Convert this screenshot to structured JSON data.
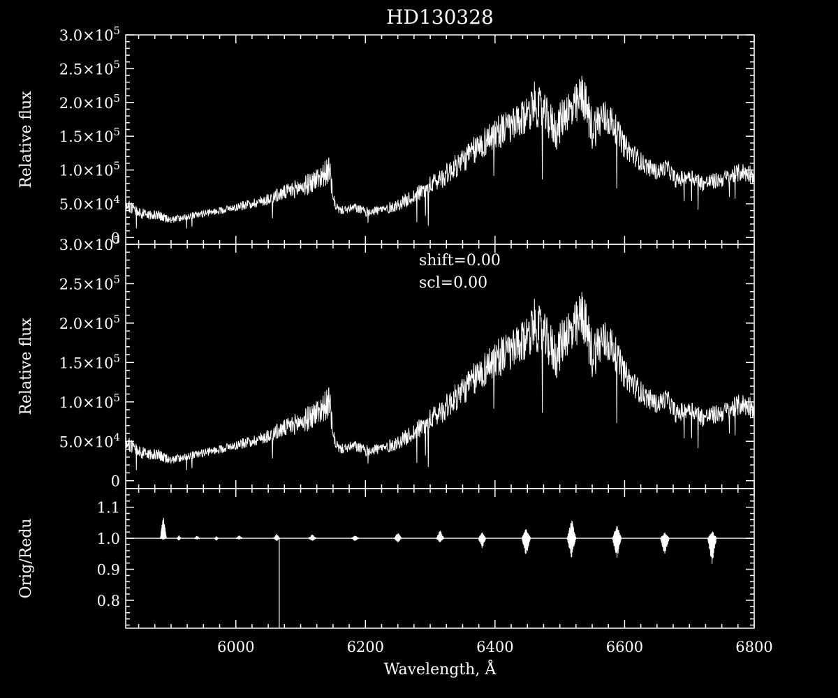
{
  "chart_data": [
    {
      "type": "line",
      "title": "HD130328",
      "xlabel": "",
      "ylabel": "Relative flux",
      "xlim": [
        5830,
        6800
      ],
      "ylim": [
        -10000,
        300000
      ],
      "yticks": [
        {
          "value": 300000,
          "mant": "3.0",
          "exp": "5"
        },
        {
          "value": 250000,
          "mant": "2.5",
          "exp": "5"
        },
        {
          "value": 200000,
          "mant": "2.0",
          "exp": "5"
        },
        {
          "value": 150000,
          "mant": "1.5",
          "exp": "5"
        },
        {
          "value": 100000,
          "mant": "1.0",
          "exp": "5"
        },
        {
          "value": 50000,
          "mant": "5.0",
          "exp": "4"
        },
        {
          "value": 0,
          "mant": "0",
          "exp": ""
        }
      ],
      "annotations": [],
      "series": [
        {
          "x": [
            5830,
            5850,
            5880,
            5900,
            5930,
            5960,
            6000,
            6040,
            6080,
            6110,
            6130,
            6145,
            6150,
            6160,
            6185,
            6200,
            6230,
            6250,
            6280,
            6320,
            6360,
            6400,
            6440,
            6460,
            6480,
            6495,
            6510,
            6520,
            6535,
            6550,
            6565,
            6580,
            6600,
            6630,
            6650,
            6665,
            6680,
            6700,
            6720,
            6750,
            6780,
            6800
          ],
          "y": [
            50000,
            36000,
            32000,
            26000,
            32000,
            37000,
            45000,
            54000,
            68000,
            78000,
            90000,
            100000,
            55000,
            40000,
            44000,
            38000,
            42000,
            48000,
            64000,
            90000,
            122000,
            155000,
            170000,
            200000,
            178000,
            158000,
            190000,
            185000,
            213000,
            160000,
            178000,
            172000,
            135000,
            108000,
            97000,
            105000,
            84000,
            93000,
            80000,
            86000,
            97000,
            94000
          ],
          "noise": [
            9000,
            8000,
            8000,
            5000,
            5000,
            5000,
            6000,
            8000,
            12000,
            16000,
            18000,
            20000,
            10000,
            6000,
            7000,
            7000,
            8000,
            9000,
            12000,
            16000,
            20000,
            25000,
            28000,
            32000,
            30000,
            30000,
            32000,
            34000,
            34000,
            32000,
            30000,
            24000,
            18000,
            14000,
            12000,
            12000,
            12000,
            12000,
            12000,
            12000,
            14000,
            14000
          ]
        }
      ]
    },
    {
      "type": "line",
      "title": "",
      "xlabel": "",
      "ylabel": "Relative flux",
      "xlim": [
        5830,
        6800
      ],
      "ylim": [
        -10000,
        300000
      ],
      "yticks": [
        {
          "value": 300000,
          "mant": "3.0",
          "exp": "5"
        },
        {
          "value": 250000,
          "mant": "2.5",
          "exp": "5"
        },
        {
          "value": 200000,
          "mant": "2.0",
          "exp": "5"
        },
        {
          "value": 150000,
          "mant": "1.5",
          "exp": "5"
        },
        {
          "value": 100000,
          "mant": "1.0",
          "exp": "5"
        },
        {
          "value": 50000,
          "mant": "5.0",
          "exp": "4"
        },
        {
          "value": 0,
          "mant": "0",
          "exp": ""
        }
      ],
      "annotations": [
        "shift=0.00",
        "scl=0.00"
      ],
      "series": [
        {
          "x": [
            5830,
            5850,
            5880,
            5900,
            5930,
            5960,
            6000,
            6040,
            6080,
            6110,
            6130,
            6145,
            6150,
            6160,
            6185,
            6200,
            6230,
            6250,
            6280,
            6320,
            6360,
            6400,
            6440,
            6460,
            6480,
            6495,
            6510,
            6520,
            6535,
            6550,
            6565,
            6580,
            6600,
            6630,
            6650,
            6665,
            6680,
            6700,
            6720,
            6750,
            6780,
            6800
          ],
          "y": [
            50000,
            36000,
            32000,
            26000,
            32000,
            37000,
            45000,
            54000,
            68000,
            78000,
            90000,
            100000,
            55000,
            40000,
            44000,
            38000,
            42000,
            48000,
            64000,
            90000,
            122000,
            155000,
            170000,
            200000,
            178000,
            158000,
            190000,
            185000,
            213000,
            160000,
            178000,
            172000,
            135000,
            108000,
            97000,
            105000,
            84000,
            93000,
            80000,
            86000,
            97000,
            94000
          ],
          "noise": [
            9000,
            8000,
            8000,
            5000,
            5000,
            5000,
            6000,
            8000,
            12000,
            16000,
            18000,
            20000,
            10000,
            6000,
            7000,
            7000,
            8000,
            9000,
            12000,
            16000,
            20000,
            25000,
            28000,
            32000,
            30000,
            30000,
            32000,
            34000,
            34000,
            32000,
            30000,
            24000,
            18000,
            14000,
            12000,
            12000,
            12000,
            12000,
            12000,
            12000,
            14000,
            14000
          ]
        }
      ]
    },
    {
      "type": "line",
      "title": "",
      "xlabel": "Wavelength, Å",
      "ylabel": "Orig/Redu",
      "xlim": [
        5830,
        6800
      ],
      "ylim": [
        0.71,
        1.16
      ],
      "yticks": [
        {
          "value": 1.1,
          "mant": "1.1",
          "exp": ""
        },
        {
          "value": 1.0,
          "mant": "1.0",
          "exp": ""
        },
        {
          "value": 0.9,
          "mant": "0.9",
          "exp": ""
        },
        {
          "value": 0.8,
          "mant": "0.8",
          "exp": ""
        }
      ],
      "xticks": [
        {
          "value": 6000,
          "label": "6000"
        },
        {
          "value": 6200,
          "label": "6200"
        },
        {
          "value": 6400,
          "label": "6400"
        },
        {
          "value": 6600,
          "label": "6600"
        },
        {
          "value": 6800,
          "label": "6800"
        }
      ],
      "annotations": [],
      "baseline": 1.0,
      "features": [
        {
          "x": 5888,
          "min": 0.995,
          "max": 1.08,
          "width": 10
        },
        {
          "x": 5912,
          "min": 0.99,
          "max": 1.01,
          "width": 6
        },
        {
          "x": 5940,
          "min": 0.995,
          "max": 1.01,
          "width": 8
        },
        {
          "x": 5970,
          "min": 0.99,
          "max": 1.008,
          "width": 6
        },
        {
          "x": 6005,
          "min": 0.995,
          "max": 1.01,
          "width": 10
        },
        {
          "x": 6063,
          "min": 0.99,
          "max": 1.015,
          "width": 10
        },
        {
          "x": 6118,
          "min": 0.99,
          "max": 1.013,
          "width": 12
        },
        {
          "x": 6184,
          "min": 0.99,
          "max": 1.01,
          "width": 12
        },
        {
          "x": 6250,
          "min": 0.985,
          "max": 1.02,
          "width": 12
        },
        {
          "x": 6315,
          "min": 0.985,
          "max": 1.03,
          "width": 12
        },
        {
          "x": 6380,
          "min": 0.965,
          "max": 1.02,
          "width": 12
        },
        {
          "x": 6448,
          "min": 0.94,
          "max": 1.035,
          "width": 14
        },
        {
          "x": 6518,
          "min": 0.935,
          "max": 1.065,
          "width": 14
        },
        {
          "x": 6588,
          "min": 0.93,
          "max": 1.045,
          "width": 14
        },
        {
          "x": 6662,
          "min": 0.94,
          "max": 1.02,
          "width": 14
        },
        {
          "x": 6735,
          "min": 0.915,
          "max": 1.025,
          "width": 14
        }
      ],
      "spikes": [
        {
          "x": 6067,
          "min": 0.7,
          "max": 1.0
        }
      ]
    }
  ]
}
